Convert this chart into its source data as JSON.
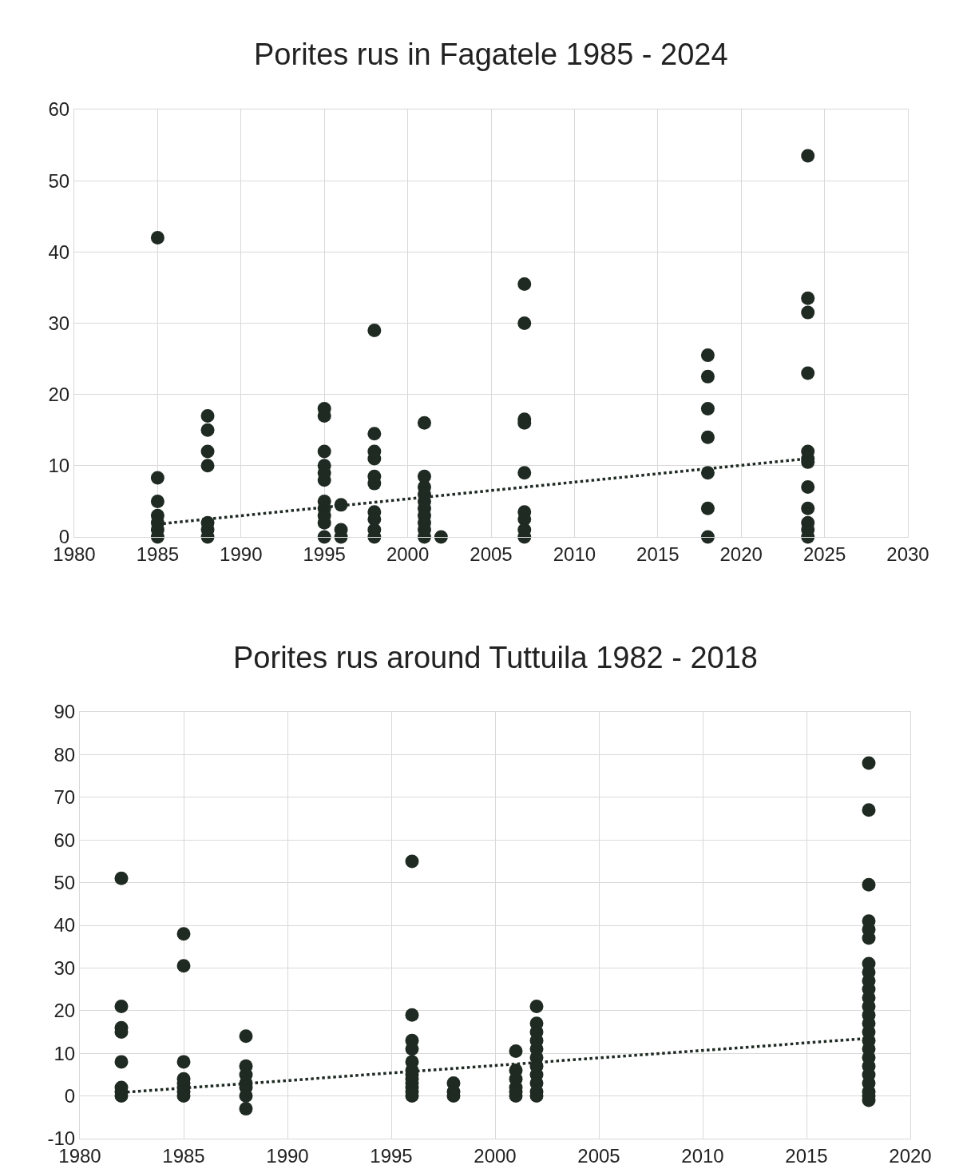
{
  "chart_data": [
    {
      "type": "scatter",
      "title": "Porites rus in Fagatele 1985 - 2024",
      "xlim": [
        1980,
        2030
      ],
      "xticks": [
        1980,
        1985,
        1990,
        1995,
        2000,
        2005,
        2010,
        2015,
        2020,
        2025,
        2030
      ],
      "ylim": [
        0,
        60
      ],
      "yticks": [
        0,
        10,
        20,
        30,
        40,
        50,
        60
      ],
      "grid": true,
      "marker": "circle",
      "series": [
        {
          "color": "#1e2a22",
          "x": [
            1985,
            1985,
            1985,
            1985,
            1985,
            1985,
            1985,
            1988,
            1988,
            1988,
            1988,
            1988,
            1988,
            1988,
            1995,
            1995,
            1995,
            1995,
            1995,
            1995,
            1995,
            1995,
            1995,
            1995,
            1995,
            1996,
            1996,
            1996,
            1998,
            1998,
            1998,
            1998,
            1998,
            1998,
            1998,
            1998,
            1998,
            1998,
            2001,
            2001,
            2001,
            2001,
            2001,
            2001,
            2001,
            2001,
            2001,
            2001,
            2002,
            2007,
            2007,
            2007,
            2007,
            2007,
            2007,
            2007,
            2007,
            2007,
            2018,
            2018,
            2018,
            2018,
            2018,
            2018,
            2018,
            2024,
            2024,
            2024,
            2024,
            2024,
            2024,
            2024,
            2024,
            2024,
            2024,
            2024,
            2024
          ],
          "values": [
            42,
            8.3,
            5,
            3,
            2,
            1,
            0,
            17,
            15,
            12,
            10,
            2,
            1,
            0,
            18,
            17,
            12,
            10,
            9,
            8,
            5,
            4,
            3,
            2,
            0,
            4.5,
            1,
            0,
            29,
            14.5,
            12,
            11,
            8.5,
            7.5,
            3.5,
            2.5,
            1,
            0,
            16,
            8.5,
            7,
            6,
            5,
            4,
            3,
            2,
            1,
            0,
            0,
            35.5,
            30,
            16.5,
            16,
            9,
            3.5,
            2.5,
            1,
            0,
            25.5,
            22.5,
            18,
            14,
            9,
            4,
            0,
            53.5,
            33.5,
            31.5,
            23,
            12,
            11,
            10.5,
            7,
            4,
            2,
            1,
            0
          ]
        },
        {
          "type": "line",
          "color": "#1e2a22",
          "line_style": "dotted",
          "marker": "none",
          "x": [
            1985,
            2024
          ],
          "values": [
            1.8,
            11
          ]
        }
      ]
    },
    {
      "type": "scatter",
      "title": "Porites rus around Tuttuila 1982 - 2018",
      "xlim": [
        1980,
        2020
      ],
      "xticks": [
        1980,
        1985,
        1990,
        1995,
        2000,
        2005,
        2010,
        2015,
        2020
      ],
      "ylim": [
        -10,
        90
      ],
      "yticks": [
        -10,
        0,
        10,
        20,
        30,
        40,
        50,
        60,
        70,
        80,
        90
      ],
      "grid": true,
      "marker": "circle",
      "series": [
        {
          "color": "#1e2a22",
          "x": [
            1982,
            1982,
            1982,
            1982,
            1982,
            1982,
            1982,
            1982,
            1985,
            1985,
            1985,
            1985,
            1985,
            1985,
            1985,
            1985,
            1988,
            1988,
            1988,
            1988,
            1988,
            1988,
            1988,
            1996,
            1996,
            1996,
            1996,
            1996,
            1996,
            1996,
            1996,
            1996,
            1996,
            1996,
            1996,
            1998,
            1998,
            1998,
            2001,
            2001,
            2001,
            2001,
            2001,
            2001,
            2002,
            2002,
            2002,
            2002,
            2002,
            2002,
            2002,
            2002,
            2002,
            2002,
            2002,
            2018,
            2018,
            2018,
            2018,
            2018,
            2018,
            2018,
            2018,
            2018,
            2018,
            2018,
            2018,
            2018,
            2018,
            2018,
            2018,
            2018,
            2018,
            2018,
            2018,
            2018,
            2018,
            2018,
            2018
          ],
          "values": [
            51,
            21,
            16,
            15,
            8,
            2,
            1,
            0,
            38,
            30.5,
            8,
            4,
            3,
            2,
            1,
            0,
            14,
            7,
            5,
            3,
            2,
            0,
            -3,
            55,
            19,
            13,
            11,
            8,
            6,
            5,
            4,
            3,
            2,
            1,
            0,
            3,
            1,
            0,
            10.5,
            6,
            4,
            2,
            1,
            0,
            21,
            17,
            15,
            13,
            11,
            9,
            7,
            5,
            3,
            1,
            0,
            78,
            67,
            49.5,
            41,
            39,
            37,
            31,
            29,
            27,
            25,
            23,
            21,
            19,
            17,
            15,
            13,
            11,
            9,
            7,
            5,
            3,
            1,
            0,
            -1
          ]
        },
        {
          "type": "line",
          "color": "#1e2a22",
          "line_style": "dotted",
          "marker": "none",
          "x": [
            1982,
            2018
          ],
          "values": [
            0.8,
            13.5
          ]
        }
      ]
    }
  ]
}
